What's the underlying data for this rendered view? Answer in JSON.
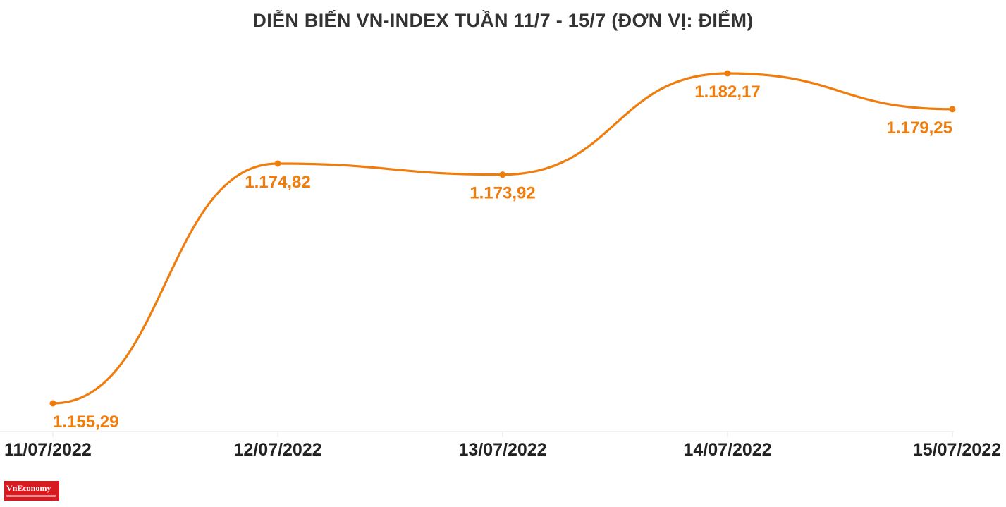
{
  "chart_data": {
    "type": "line",
    "title": "DIỄN BIẾN VN-INDEX TUẦN 11/7 - 15/7 (ĐƠN VỊ: ĐIỂM)",
    "xlabel": "",
    "ylabel": "",
    "categories": [
      "11/07/2022",
      "12/07/2022",
      "13/07/2022",
      "14/07/2022",
      "15/07/2022"
    ],
    "series": [
      {
        "values": [
          1155.29,
          1174.82,
          1173.92,
          1182.17,
          1179.25
        ],
        "labels": [
          "1.155,29",
          "1.174,82",
          "1.173,92",
          "1.182,17",
          "1.179,25"
        ],
        "color": "#ef7d0d"
      }
    ],
    "grid": false,
    "legend": "none"
  },
  "logo": {
    "text": "VnEconomy",
    "color": "#d71920"
  }
}
